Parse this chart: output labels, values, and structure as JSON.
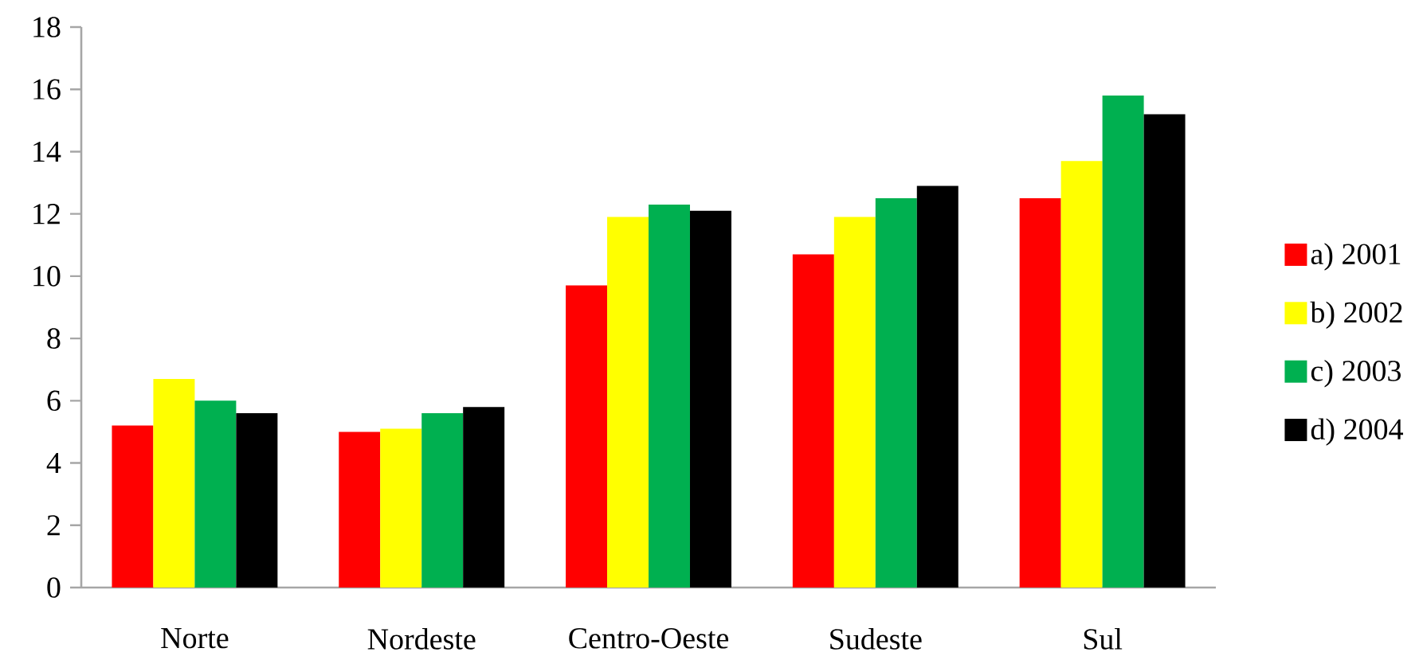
{
  "chart_data": {
    "type": "bar",
    "categories": [
      "Norte",
      "Nordeste",
      "Centro-Oeste",
      "Sudeste",
      "Sul"
    ],
    "series": [
      {
        "name": "a) 2001",
        "color": "#ff0000",
        "values": [
          5.2,
          5.0,
          9.7,
          10.7,
          12.5
        ]
      },
      {
        "name": "b) 2002",
        "color": "#ffff00",
        "values": [
          6.7,
          5.1,
          11.9,
          11.9,
          13.7
        ]
      },
      {
        "name": "c) 2003",
        "color": "#00b050",
        "values": [
          6.0,
          5.6,
          12.3,
          12.5,
          15.8
        ]
      },
      {
        "name": "d) 2004",
        "color": "#000000",
        "values": [
          5.6,
          5.8,
          12.1,
          12.9,
          15.2
        ]
      }
    ],
    "ylim": [
      0,
      18
    ],
    "yticks": [
      0,
      2,
      4,
      6,
      8,
      10,
      12,
      14,
      16,
      18
    ],
    "legend": "right"
  }
}
